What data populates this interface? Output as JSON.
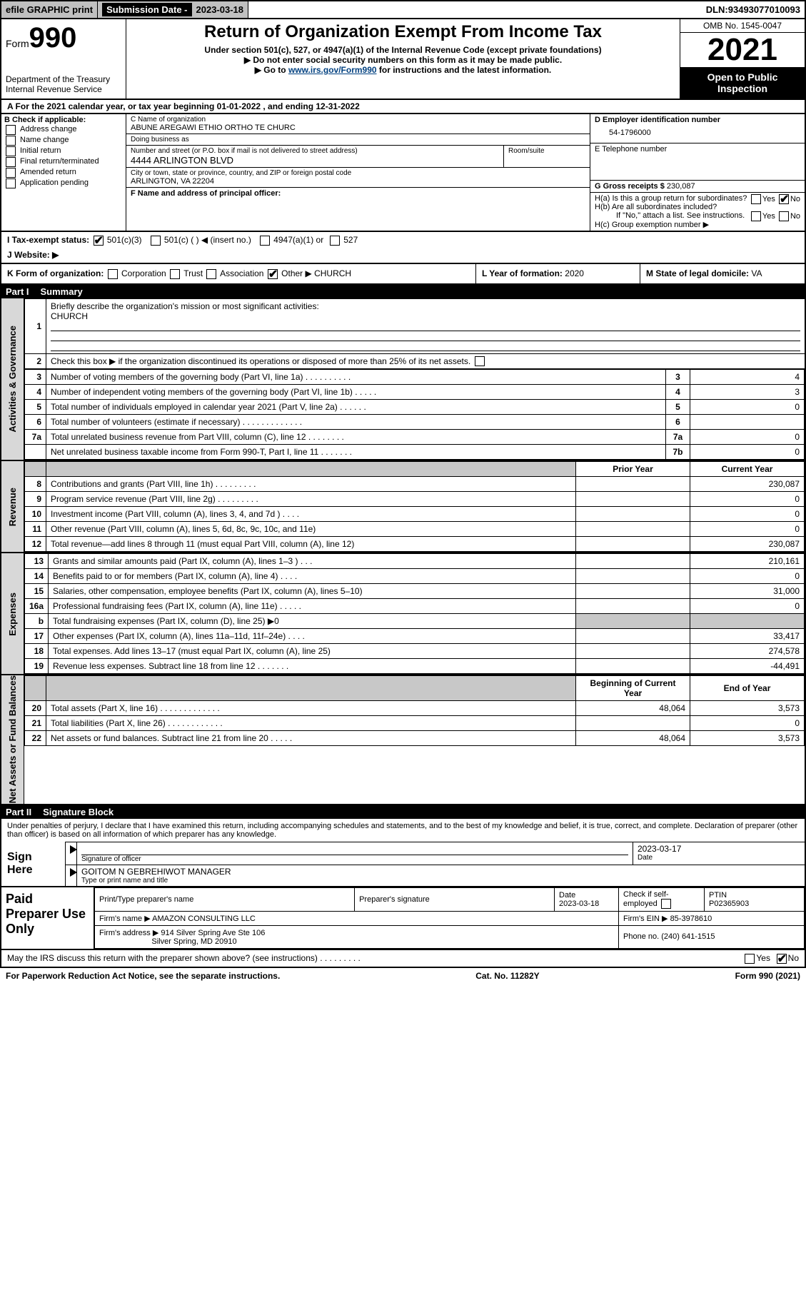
{
  "topbar": {
    "efile": "efile GRAPHIC print",
    "submission_label": "Submission Date - ",
    "submission_date": "2023-03-18",
    "dln_label": "DLN: ",
    "dln": "93493077010093"
  },
  "formhead": {
    "form_word": "Form",
    "form_no": "990",
    "dept": "Department of the Treasury\nInternal Revenue Service",
    "title": "Return of Organization Exempt From Income Tax",
    "sub1": "Under section 501(c), 527, or 4947(a)(1) of the Internal Revenue Code (except private foundations)",
    "sub2": "▶ Do not enter social security numbers on this form as it may be made public.",
    "sub3_pre": "▶ Go to ",
    "sub3_link": "www.irs.gov/Form990",
    "sub3_post": " for instructions and the latest information.",
    "omb": "OMB No. 1545-0047",
    "year": "2021",
    "open": "Open to Public Inspection"
  },
  "calrow": "A For the 2021 calendar year, or tax year beginning 01-01-2022   , and ending 12-31-2022",
  "B": {
    "hdr": "B Check if applicable:",
    "items": [
      "Address change",
      "Name change",
      "Initial return",
      "Final return/terminated",
      "Amended return",
      "Application pending"
    ]
  },
  "C": {
    "name_label": "C Name of organization",
    "name": "ABUNE AREGAWI ETHIO ORTHO TE CHURC",
    "dba_label": "Doing business as",
    "dba": "",
    "street_label": "Number and street (or P.O. box if mail is not delivered to street address)",
    "room_label": "Room/suite",
    "street": "4444 ARLINGTON BLVD",
    "city_label": "City or town, state or province, country, and ZIP or foreign postal code",
    "city": "ARLINGTON, VA  22204",
    "F_label": "F Name and address of principal officer:",
    "F_value": ""
  },
  "D": {
    "label": "D Employer identification number",
    "value": "54-1796000",
    "E_label": "E Telephone number",
    "E_value": "",
    "G_label": "G Gross receipts $",
    "G_value": "230,087"
  },
  "H": {
    "a": "H(a)  Is this a group return for subordinates?",
    "a_yes": "Yes",
    "a_no": "No",
    "a_checked": "no",
    "b": "H(b)  Are all subordinates included?",
    "b_yes": "Yes",
    "b_no": "No",
    "b_note": "If \"No,\" attach a list. See instructions.",
    "c": "H(c)  Group exemption number ▶"
  },
  "I": {
    "label": "I   Tax-exempt status:",
    "opts": [
      "501(c)(3)",
      "501(c) (  ) ◀ (insert no.)",
      "4947(a)(1) or",
      "527"
    ],
    "checked": 0
  },
  "J": {
    "label": "J   Website: ▶",
    "value": ""
  },
  "K": {
    "label": "K Form of organization:",
    "opts": [
      "Corporation",
      "Trust",
      "Association",
      "Other ▶"
    ],
    "checked": 3,
    "other": "CHURCH"
  },
  "L": {
    "label": "L Year of formation:",
    "value": "2020"
  },
  "M": {
    "label": "M State of legal domicile:",
    "value": "VA"
  },
  "parts": {
    "p1": {
      "num": "Part I",
      "title": "Summary"
    },
    "p2": {
      "num": "Part II",
      "title": "Signature Block"
    }
  },
  "summary": {
    "line1_label": "Briefly describe the organization's mission or most significant activities:",
    "line1_value": "CHURCH",
    "line2": "Check this box ▶      if the organization discontinued its operations or disposed of more than 25% of its net assets.",
    "rows_ag": [
      {
        "n": "3",
        "desc": "Number of voting members of the governing body (Part VI, line 1a)  .   .   .   .   .   .   .   .   .   .",
        "box": "3",
        "val": "4"
      },
      {
        "n": "4",
        "desc": "Number of independent voting members of the governing body (Part VI, line 1b)  .   .   .   .   .",
        "box": "4",
        "val": "3"
      },
      {
        "n": "5",
        "desc": "Total number of individuals employed in calendar year 2021 (Part V, line 2a)  .   .   .   .   .   .",
        "box": "5",
        "val": "0"
      },
      {
        "n": "6",
        "desc": "Total number of volunteers (estimate if necessary)  .   .   .   .   .   .   .   .   .   .   .   .   .",
        "box": "6",
        "val": ""
      },
      {
        "n": "7a",
        "desc": "Total unrelated business revenue from Part VIII, column (C), line 12  .   .   .   .   .   .   .   .",
        "box": "7a",
        "val": "0"
      },
      {
        "n": "",
        "desc": "Net unrelated business taxable income from Form 990-T, Part I, line 11  .   .   .   .   .   .   .",
        "box": "7b",
        "val": "0"
      }
    ],
    "col_headers": {
      "prior": "Prior Year",
      "current": "Current Year"
    },
    "rows_rev": [
      {
        "n": "8",
        "desc": "Contributions and grants (Part VIII, line 1h)  .   .   .   .   .   .   .   .   .",
        "prior": "",
        "cur": "230,087"
      },
      {
        "n": "9",
        "desc": "Program service revenue (Part VIII, line 2g)  .   .   .   .   .   .   .   .   .",
        "prior": "",
        "cur": "0"
      },
      {
        "n": "10",
        "desc": "Investment income (Part VIII, column (A), lines 3, 4, and 7d )  .   .   .   .",
        "prior": "",
        "cur": "0"
      },
      {
        "n": "11",
        "desc": "Other revenue (Part VIII, column (A), lines 5, 6d, 8c, 9c, 10c, and 11e)",
        "prior": "",
        "cur": "0"
      },
      {
        "n": "12",
        "desc": "Total revenue—add lines 8 through 11 (must equal Part VIII, column (A), line 12)",
        "prior": "",
        "cur": "230,087"
      }
    ],
    "rows_exp": [
      {
        "n": "13",
        "desc": "Grants and similar amounts paid (Part IX, column (A), lines 1–3 )  .   .   .",
        "prior": "",
        "cur": "210,161"
      },
      {
        "n": "14",
        "desc": "Benefits paid to or for members (Part IX, column (A), line 4)  .   .   .   .",
        "prior": "",
        "cur": "0"
      },
      {
        "n": "15",
        "desc": "Salaries, other compensation, employee benefits (Part IX, column (A), lines 5–10)",
        "prior": "",
        "cur": "31,000"
      },
      {
        "n": "16a",
        "desc": "Professional fundraising fees (Part IX, column (A), line 11e)  .   .   .   .   .",
        "prior": "",
        "cur": "0"
      },
      {
        "n": "b",
        "desc": "Total fundraising expenses (Part IX, column (D), line 25) ▶0",
        "prior": "shade",
        "cur": "shade"
      },
      {
        "n": "17",
        "desc": "Other expenses (Part IX, column (A), lines 11a–11d, 11f–24e)  .   .   .   .",
        "prior": "",
        "cur": "33,417"
      },
      {
        "n": "18",
        "desc": "Total expenses. Add lines 13–17 (must equal Part IX, column (A), line 25)",
        "prior": "",
        "cur": "274,578"
      },
      {
        "n": "19",
        "desc": "Revenue less expenses. Subtract line 18 from line 12  .   .   .   .   .   .   .",
        "prior": "",
        "cur": "-44,491"
      }
    ],
    "na_headers": {
      "begin": "Beginning of Current Year",
      "end": "End of Year"
    },
    "rows_na": [
      {
        "n": "20",
        "desc": "Total assets (Part X, line 16)  .   .   .   .   .   .   .   .   .   .   .   .   .",
        "prior": "48,064",
        "cur": "3,573"
      },
      {
        "n": "21",
        "desc": "Total liabilities (Part X, line 26)  .   .   .   .   .   .   .   .   .   .   .   .",
        "prior": "",
        "cur": "0"
      },
      {
        "n": "22",
        "desc": "Net assets or fund balances. Subtract line 21 from line 20  .   .   .   .   .",
        "prior": "48,064",
        "cur": "3,573"
      }
    ],
    "sidelabels": [
      "Activities & Governance",
      "Revenue",
      "Expenses",
      "Net Assets or Fund Balances"
    ]
  },
  "sig": {
    "decl": "Under penalties of perjury, I declare that I have examined this return, including accompanying schedules and statements, and to the best of my knowledge and belief, it is true, correct, and complete. Declaration of preparer (other than officer) is based on all information of which preparer has any knowledge.",
    "sign_here": "Sign Here",
    "sig_officer_label": "Signature of officer",
    "date_label": "Date",
    "date_value": "2023-03-17",
    "name_label": "Type or print name and title",
    "name_value": "GOITOM N GEBREHIWOT  MANAGER"
  },
  "paid": {
    "label": "Paid Preparer Use Only",
    "h": [
      "Print/Type preparer's name",
      "Preparer's signature",
      "Date",
      "Check      if self-employed",
      "PTIN"
    ],
    "r1": [
      "",
      "",
      "2023-03-18",
      "",
      "P02365903"
    ],
    "firm_name_label": "Firm's name    ▶",
    "firm_name": "AMAZON CONSULTING LLC",
    "firm_ein_label": "Firm's EIN ▶",
    "firm_ein": "85-3978610",
    "firm_addr_label": "Firm's address ▶",
    "firm_addr1": "914 Silver Spring Ave Ste 106",
    "firm_addr2": "Silver Spring, MD  20910",
    "phone_label": "Phone no.",
    "phone": "(240) 641-1515"
  },
  "footer": {
    "q": "May the IRS discuss this return with the preparer shown above? (see instructions)  .   .   .   .   .   .   .   .   .",
    "yes": "Yes",
    "no": "No",
    "checked": "no",
    "pra": "For Paperwork Reduction Act Notice, see the separate instructions.",
    "cat": "Cat. No. 11282Y",
    "formno": "Form 990 (2021)"
  },
  "colors": {
    "black": "#000000",
    "gray_header": "#c0c0c0",
    "gray_side": "#d8d8d8",
    "gray_shade": "#c8c8c8",
    "link": "#004080"
  }
}
